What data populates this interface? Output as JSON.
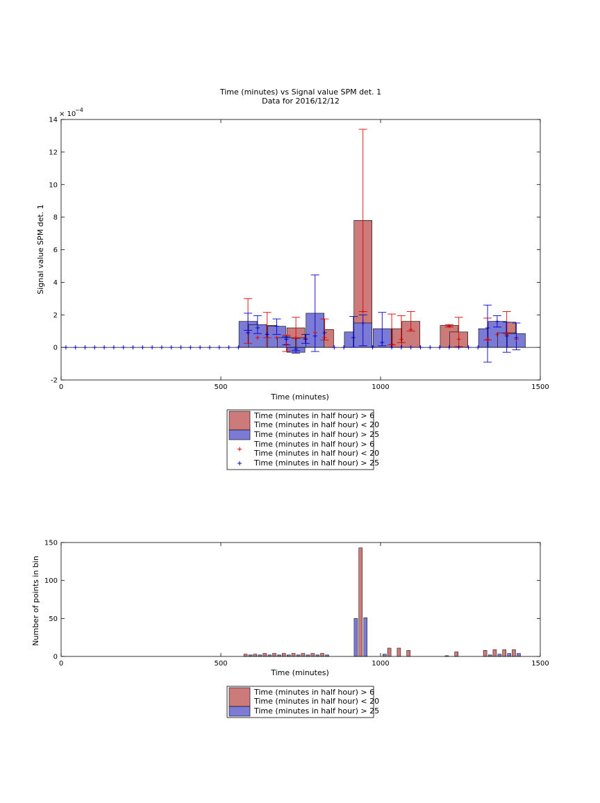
{
  "chart_data": [
    {
      "type": "bar",
      "title": "Time (minutes) vs Signal value SPM det. 1",
      "subtitle": "Data for 2016/12/12",
      "xlabel": "Time (minutes)",
      "ylabel": "Signal value SPM det. 1",
      "y_exponent_label": "× 10",
      "y_exponent_power": "−4",
      "xlim": [
        0,
        1500
      ],
      "ylim": [
        -2,
        14
      ],
      "xticks": [
        0,
        500,
        1000,
        1500
      ],
      "yticks": [
        -2,
        0,
        2,
        4,
        6,
        8,
        10,
        12,
        14
      ],
      "grid": false,
      "legend_position": "below",
      "series": [
        {
          "name": "Time (minutes in half hour) > 6\nTime (minutes in half hour) < 20",
          "color": "#cc7a7a",
          "err_color": "#dd0000",
          "bars": [
            {
              "x": 645,
              "y": 1.35,
              "lo": 0.6,
              "hi": 2.15
            },
            {
              "x": 735,
              "y": 1.2,
              "lo": 0.55,
              "hi": 1.85
            },
            {
              "x": 825,
              "y": 1.1,
              "lo": 0.45,
              "hi": 1.75
            },
            {
              "x": 945,
              "y": 7.8,
              "lo": 2.2,
              "hi": 13.4
            },
            {
              "x": 1035,
              "y": 1.1,
              "lo": 0.15,
              "hi": 2.05
            },
            {
              "x": 1065,
              "y": 1.15,
              "lo": 0.3,
              "hi": 1.95
            },
            {
              "x": 1095,
              "y": 1.6,
              "lo": 1.0,
              "hi": 2.2
            },
            {
              "x": 1215,
              "y": 1.35,
              "lo": 1.25,
              "hi": 1.4
            },
            {
              "x": 1245,
              "y": 0.95,
              "lo": 0.05,
              "hi": 1.85
            },
            {
              "x": 1395,
              "y": 1.55,
              "lo": 0.85,
              "hi": 2.2
            }
          ],
          "markers_x": [
            585,
            615,
            645,
            675,
            705,
            735,
            765,
            795,
            825,
            945,
            1035,
            1065,
            1095,
            1215,
            1245,
            1335,
            1365,
            1395,
            1425
          ],
          "markers_y": [
            0.9,
            0.6,
            0.8,
            0.6,
            0.2,
            0.6,
            0.55,
            0.9,
            0.6,
            2.2,
            0.2,
            0.5,
            1.1,
            1.3,
            0.5,
            0.5,
            0.8,
            0.8,
            0.5
          ],
          "err_extra": [
            {
              "x": 585,
              "lo": 0.25,
              "hi": 3.0
            },
            {
              "x": 705,
              "lo": -0.25,
              "hi": 0.75
            },
            {
              "x": 1335,
              "lo": 0.45,
              "hi": 1.8
            }
          ]
        },
        {
          "name": "Time (minutes in half hour) > 25",
          "color": "#7b7bd6",
          "err_color": "#0000cc",
          "bars": [
            {
              "x": 585,
              "y": 1.6,
              "lo": 1.05,
              "hi": 2.1
            },
            {
              "x": 615,
              "y": 1.4,
              "lo": 0.85,
              "hi": 1.95
            },
            {
              "x": 675,
              "y": 1.3,
              "lo": 0.8,
              "hi": 1.75
            },
            {
              "x": 705,
              "y": 0.6,
              "lo": 0.15,
              "hi": 0.65
            },
            {
              "x": 735,
              "y": -0.3,
              "lo": -0.35,
              "hi": -0.2
            },
            {
              "x": 765,
              "y": 0.6,
              "lo": 0.25,
              "hi": 0.8
            },
            {
              "x": 795,
              "y": 2.1,
              "lo": -0.25,
              "hi": 4.45
            },
            {
              "x": 915,
              "y": 0.95,
              "lo": 0.0,
              "hi": 1.9
            },
            {
              "x": 945,
              "y": 1.5,
              "lo": 0.1,
              "hi": 2.0
            },
            {
              "x": 1005,
              "y": 1.15,
              "lo": 0.1,
              "hi": 2.15
            },
            {
              "x": 1335,
              "y": 1.15,
              "lo": -0.9,
              "hi": 2.6
            },
            {
              "x": 1365,
              "y": 1.6,
              "lo": 1.25,
              "hi": 1.95
            },
            {
              "x": 1395,
              "y": 0.9,
              "lo": -0.3,
              "hi": 1.55
            },
            {
              "x": 1425,
              "y": 0.85,
              "lo": -0.15,
              "hi": 1.5
            }
          ],
          "markers_x": [
            15,
            45,
            75,
            105,
            135,
            165,
            195,
            225,
            255,
            285,
            315,
            345,
            375,
            405,
            435,
            465,
            495,
            525,
            555,
            585,
            615,
            645,
            675,
            705,
            735,
            765,
            795,
            825,
            855,
            885,
            915,
            945,
            975,
            1005,
            1035,
            1065,
            1095,
            1125,
            1155,
            1185,
            1215,
            1245,
            1275,
            1305,
            1335,
            1365,
            1395,
            1425
          ],
          "markers_y": [
            0,
            0,
            0,
            0,
            0,
            0,
            0,
            0,
            0,
            0,
            0,
            0,
            0,
            0,
            0,
            0,
            0,
            0,
            0,
            0.9,
            1.2,
            0.8,
            1.3,
            0.5,
            -0.1,
            0.5,
            0.7,
            0.9,
            0,
            0,
            0.6,
            1.5,
            0,
            0.3,
            0,
            0,
            0,
            0,
            0,
            0,
            0,
            0,
            0,
            0,
            1.2,
            1.6,
            0.7,
            0.6
          ]
        }
      ],
      "legend": [
        {
          "kind": "patch",
          "color": "#cc7a7a",
          "line1": "Time (minutes in half hour) > 6",
          "line2": "Time (minutes in half hour) < 20"
        },
        {
          "kind": "patch",
          "color": "#7b7bd6",
          "line1": "Time (minutes in half hour) > 25"
        },
        {
          "kind": "marker",
          "color": "#dd0000",
          "line1": "Time (minutes in half hour) > 6",
          "line2": "Time (minutes in half hour) < 20"
        },
        {
          "kind": "marker",
          "color": "#0000cc",
          "line1": "Time (minutes in half hour) > 25"
        }
      ]
    },
    {
      "type": "bar",
      "title": "",
      "xlabel": "Time (minutes)",
      "ylabel": "Number of points in bin",
      "xlim": [
        0,
        1500
      ],
      "ylim": [
        0,
        150
      ],
      "xticks": [
        0,
        500,
        1000,
        1500
      ],
      "yticks": [
        0,
        50,
        100,
        150
      ],
      "grid": false,
      "legend_position": "below",
      "series": [
        {
          "name": "Time (minutes in half hour) > 6\nTime (minutes in half hour) < 20",
          "color": "#cc7a7a",
          "x": [
            585,
            615,
            645,
            675,
            705,
            735,
            765,
            795,
            825,
            945,
            1035,
            1065,
            1095,
            1215,
            1245,
            1335,
            1365,
            1395,
            1425
          ],
          "values": [
            3,
            3,
            4,
            4,
            4,
            4,
            4,
            4,
            4,
            143,
            11,
            11,
            8,
            1,
            6,
            8,
            9,
            9,
            9
          ]
        },
        {
          "name": "Time (minutes in half hour) > 25",
          "color": "#7b7bd6",
          "x": [
            585,
            615,
            645,
            675,
            705,
            735,
            765,
            795,
            825,
            915,
            945,
            1005,
            1335,
            1365,
            1395,
            1425
          ],
          "values": [
            2,
            2,
            2,
            2,
            2,
            2,
            2,
            2,
            2,
            50,
            51,
            3,
            2,
            3,
            4,
            4
          ]
        }
      ],
      "legend": [
        {
          "kind": "patch",
          "color": "#cc7a7a",
          "line1": "Time (minutes in half hour) > 6",
          "line2": "Time (minutes in half hour) < 20"
        },
        {
          "kind": "patch",
          "color": "#7b7bd6",
          "line1": "Time (minutes in half hour) > 25"
        }
      ]
    }
  ]
}
